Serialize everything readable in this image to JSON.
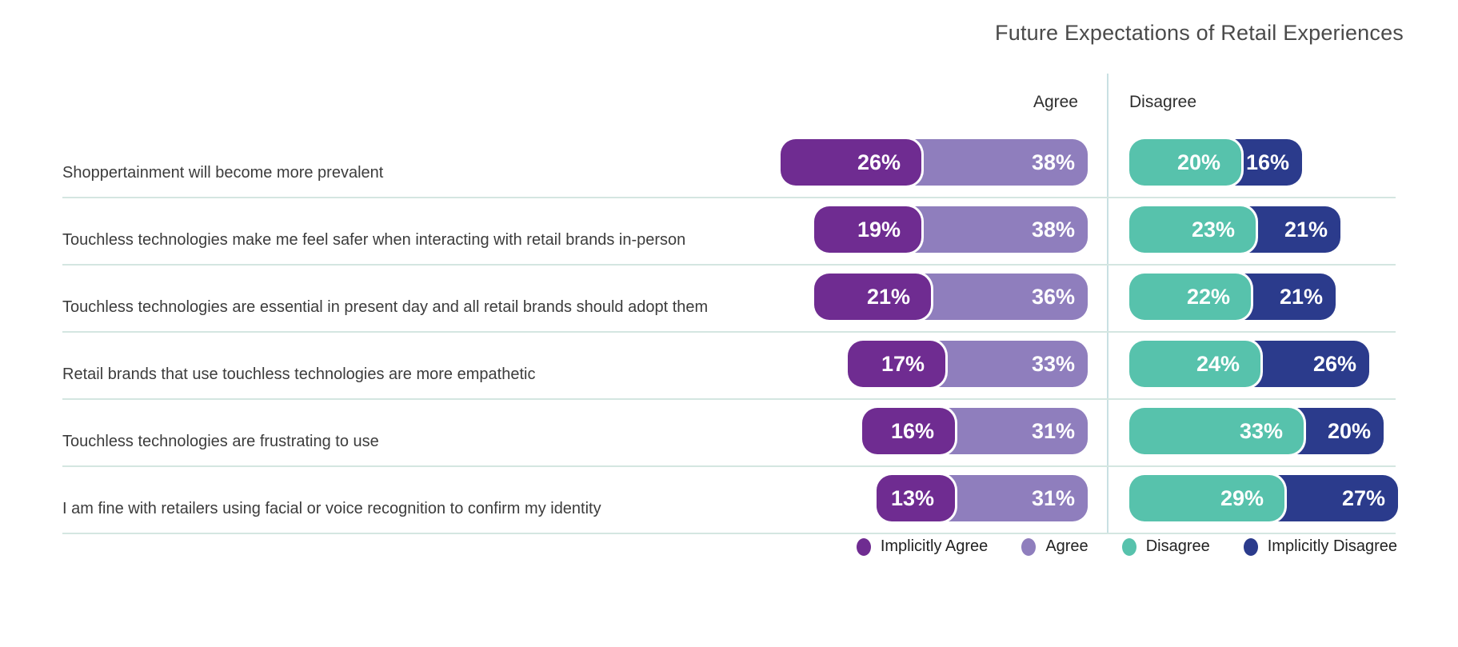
{
  "chart_data": {
    "type": "bar",
    "subtype": "diverging-stacked-pill-bars",
    "title": "Future Expectations of Retail Experiences",
    "column_headers": {
      "agree": "Agree",
      "disagree": "Disagree"
    },
    "unit": "%",
    "categories": [
      "Shoppertainment will become more prevalent",
      "Touchless technologies make me feel safer when interacting with retail brands in-person",
      "Touchless technologies are essential in present day and all retail brands should adopt them",
      "Retail brands that use touchless technologies are more empathetic",
      "Touchless technologies are frustrating to use",
      "I am fine with retailers using facial or voice recognition to confirm my identity"
    ],
    "series": [
      {
        "name": "Implicitly Agree",
        "side": "agree",
        "color": "#6f2c91",
        "values": [
          26,
          19,
          21,
          17,
          16,
          13
        ]
      },
      {
        "name": "Agree",
        "side": "agree",
        "color": "#8f7ebd",
        "values": [
          38,
          38,
          36,
          33,
          31,
          31
        ]
      },
      {
        "name": "Disagree",
        "side": "disagree",
        "color": "#57c2ac",
        "values": [
          20,
          23,
          22,
          24,
          33,
          29
        ]
      },
      {
        "name": "Implicitly Disagree",
        "side": "disagree",
        "color": "#2b3b8c",
        "values": [
          16,
          21,
          21,
          26,
          20,
          27
        ]
      }
    ],
    "legend": [
      {
        "label": "Implicitly Agree",
        "color": "#6f2c91"
      },
      {
        "label": "Agree",
        "color": "#8f7ebd"
      },
      {
        "label": "Disagree",
        "color": "#57c2ac"
      },
      {
        "label": "Implicitly Disagree",
        "color": "#2b3b8c"
      }
    ],
    "layout_hints": {
      "legend_position": "bottom-right",
      "grid": "off",
      "bar_alignment": "agree bars right-aligned to center divider; disagree bars left-aligned from divider",
      "value_labels": "inside segment, right-aligned, white bold"
    }
  }
}
